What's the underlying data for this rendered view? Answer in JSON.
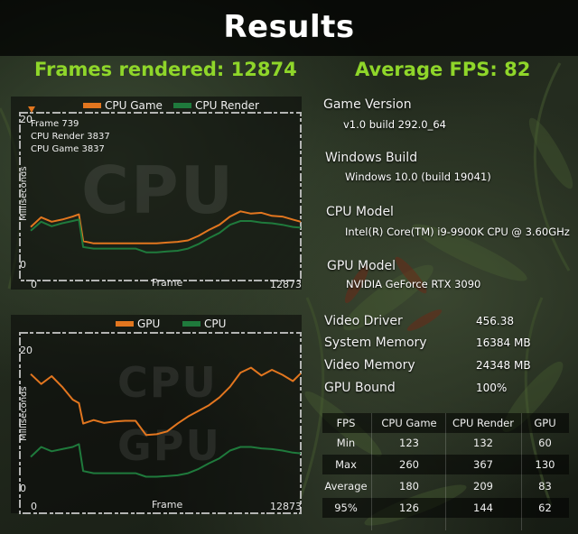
{
  "title": "Results",
  "frames_rendered_label": "Frames rendered: 12874",
  "average_fps_label": "Average FPS: 82",
  "cpu_chart": {
    "legend": [
      {
        "name": "CPU Game",
        "color": "#e2761f"
      },
      {
        "name": "CPU Render",
        "color": "#1f7a3c"
      }
    ],
    "ylabel": "Milliseconds",
    "xlabel": "Frame",
    "y_top_label": "20",
    "y_bottom_label": "0",
    "x_start_label": "0",
    "x_end_label": "12873",
    "marker_info": [
      "Frame 739",
      "CPU Render 3837",
      "CPU Game 3837"
    ],
    "watermark": "CPU"
  },
  "gpu_chart": {
    "legend": [
      {
        "name": "GPU",
        "color": "#e2761f"
      },
      {
        "name": "CPU",
        "color": "#1f7a3c"
      }
    ],
    "ylabel": "Milliseconds",
    "xlabel": "Frame",
    "y_top_label": "20",
    "y_bottom_label": "0",
    "x_start_label": "0",
    "x_end_label": "12873",
    "watermark_top": "CPU",
    "watermark_bottom": "GPU"
  },
  "chart_data": [
    {
      "type": "line",
      "title": "",
      "xlabel": "Frame",
      "ylabel": "Milliseconds",
      "xlim": [
        0,
        12873
      ],
      "ylim": [
        0,
        20
      ],
      "x": [
        0,
        500,
        1000,
        1500,
        2000,
        2300,
        2500,
        3000,
        3500,
        4000,
        4500,
        5000,
        5500,
        6000,
        6500,
        7000,
        7500,
        8000,
        8500,
        9000,
        9500,
        10000,
        10500,
        11000,
        11500,
        12000,
        12500,
        12873
      ],
      "series": [
        {
          "name": "CPU Game",
          "color": "#e2761f",
          "values": [
            5.5,
            6.8,
            6.2,
            6.5,
            6.9,
            7.2,
            3.6,
            3.3,
            3.3,
            3.3,
            3.3,
            3.3,
            3.3,
            3.3,
            3.4,
            3.5,
            3.7,
            4.3,
            5.1,
            5.8,
            6.9,
            7.6,
            7.3,
            7.4,
            7.0,
            6.9,
            6.5,
            6.2
          ]
        },
        {
          "name": "CPU Render",
          "color": "#1f7a3c",
          "values": [
            5.0,
            6.2,
            5.6,
            6.0,
            6.3,
            6.5,
            2.8,
            2.6,
            2.6,
            2.6,
            2.6,
            2.6,
            2.1,
            2.1,
            2.2,
            2.3,
            2.6,
            3.2,
            4.0,
            4.7,
            5.8,
            6.3,
            6.3,
            6.1,
            6.0,
            5.8,
            5.5,
            5.4
          ]
        }
      ]
    },
    {
      "type": "line",
      "title": "",
      "xlabel": "Frame",
      "ylabel": "Milliseconds",
      "xlim": [
        0,
        12873
      ],
      "ylim": [
        0,
        20
      ],
      "x": [
        0,
        500,
        1000,
        1500,
        2000,
        2300,
        2500,
        3000,
        3500,
        4000,
        4500,
        5000,
        5500,
        6000,
        6500,
        7000,
        7500,
        8000,
        8500,
        9000,
        9500,
        10000,
        10500,
        11000,
        11500,
        12000,
        12500,
        12873
      ],
      "series": [
        {
          "name": "GPU",
          "color": "#e2761f",
          "values": [
            16.6,
            15.2,
            16.3,
            14.8,
            13.0,
            12.5,
            9.6,
            10.1,
            9.7,
            9.9,
            10.0,
            10.0,
            8.0,
            8.1,
            8.5,
            9.6,
            10.6,
            11.4,
            12.2,
            13.3,
            14.8,
            16.8,
            17.5,
            16.4,
            17.2,
            16.5,
            15.6,
            16.7
          ]
        },
        {
          "name": "CPU",
          "color": "#1f7a3c",
          "values": [
            4.9,
            6.3,
            5.7,
            6.0,
            6.3,
            6.7,
            2.9,
            2.6,
            2.6,
            2.6,
            2.6,
            2.6,
            2.1,
            2.1,
            2.2,
            2.3,
            2.6,
            3.2,
            4.0,
            4.7,
            5.8,
            6.3,
            6.3,
            6.1,
            6.0,
            5.8,
            5.5,
            5.4
          ]
        }
      ]
    }
  ],
  "info": [
    {
      "label": "Game Version",
      "value": "v1.0 build 292.0_64"
    },
    {
      "label": "Windows Build",
      "value": "Windows 10.0 (build 19041)"
    },
    {
      "label": "CPU Model",
      "value": "Intel(R) Core(TM) i9-9900K CPU @ 3.60GHz"
    },
    {
      "label": "GPU Model",
      "value": "NVIDIA GeForce RTX 3090"
    }
  ],
  "stats": [
    {
      "label": "Video Driver",
      "value": "456.38"
    },
    {
      "label": "System Memory",
      "value": "16384 MB"
    },
    {
      "label": "Video Memory",
      "value": "24348 MB"
    },
    {
      "label": "GPU Bound",
      "value": "100%"
    }
  ],
  "table": {
    "headers": [
      "FPS",
      "CPU Game",
      "CPU Render",
      "GPU"
    ],
    "rows": [
      [
        "Min",
        "123",
        "132",
        "60"
      ],
      [
        "Max",
        "260",
        "367",
        "130"
      ],
      [
        "Average",
        "180",
        "209",
        "83"
      ],
      [
        "95%",
        "126",
        "144",
        "62"
      ]
    ]
  }
}
